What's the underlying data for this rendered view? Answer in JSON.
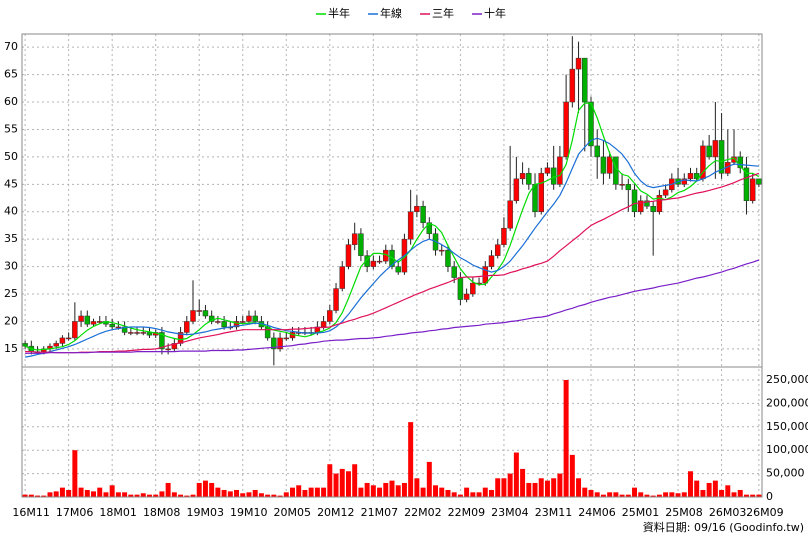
{
  "chart_data": [
    {
      "type": "candlestick",
      "categories": [
        "16M11",
        null,
        null,
        null,
        null,
        null,
        null,
        "17M06",
        null,
        null,
        null,
        null,
        null,
        null,
        "18M01",
        null,
        null,
        null,
        null,
        null,
        null,
        "18M08",
        null,
        null,
        null,
        null,
        null,
        null,
        "19M03",
        null,
        null,
        null,
        null,
        null,
        null,
        "19M10",
        null,
        null,
        null,
        null,
        null,
        null,
        "20M05",
        null,
        null,
        null,
        null,
        null,
        null,
        "20M12",
        null,
        null,
        null,
        null,
        null,
        null,
        "21M07",
        null,
        null,
        null,
        null,
        null,
        null,
        "22M02",
        null,
        null,
        null,
        null,
        null,
        null,
        "22M09",
        null,
        null,
        null,
        null,
        null,
        null,
        "23M04",
        null,
        null,
        null,
        null,
        null,
        null,
        "23M11",
        null,
        null,
        null,
        null,
        null,
        null,
        "24M06",
        null,
        null,
        null,
        null,
        null,
        null,
        "25M01",
        null,
        null,
        null,
        null,
        null,
        null,
        "25M08",
        null,
        null,
        null,
        null,
        null,
        null,
        "26M03",
        null,
        null,
        null,
        null,
        null,
        "26M09"
      ],
      "open": [
        16,
        15.5,
        14.5,
        14.5,
        15,
        15.5,
        16,
        17,
        17,
        20,
        21,
        19.5,
        20,
        20,
        19.5,
        19,
        19,
        18,
        18,
        18,
        18,
        17.5,
        18,
        15,
        15,
        16,
        18,
        20,
        22,
        22,
        21,
        20,
        20,
        19,
        19,
        20,
        20,
        21,
        20,
        19,
        17,
        15,
        17,
        17,
        18,
        18,
        18,
        18,
        19,
        20,
        22,
        26,
        30,
        34,
        36,
        32,
        30,
        31,
        31,
        33,
        30,
        29,
        35,
        40,
        41,
        38,
        36,
        33,
        33,
        30,
        28,
        24,
        25,
        27,
        27,
        30,
        32,
        34,
        37,
        42,
        46,
        47,
        45,
        40,
        47,
        48,
        45,
        50,
        60,
        66,
        68,
        60,
        52,
        50,
        47,
        50,
        45,
        45,
        44,
        40,
        42,
        41,
        40,
        43,
        44,
        46,
        45,
        46,
        47,
        46,
        52,
        50,
        53,
        47,
        49,
        50,
        48,
        42,
        46
      ],
      "high": [
        16.5,
        16.5,
        15.5,
        15.5,
        16,
        16.5,
        17.5,
        18,
        23.5,
        22,
        22,
        20.5,
        21,
        21,
        20.5,
        20,
        20,
        19,
        19,
        19,
        19,
        18.5,
        19,
        16,
        17,
        19,
        21,
        27.5,
        24,
        23,
        22,
        21,
        21,
        20,
        21,
        21,
        22,
        22,
        21,
        20,
        18,
        18,
        18,
        19,
        19,
        19,
        19,
        20,
        21,
        23,
        27,
        31,
        35,
        38,
        37,
        33,
        32,
        32,
        34,
        34,
        31,
        36,
        44,
        43,
        42,
        39,
        37,
        34,
        34,
        31,
        29,
        26,
        28,
        28,
        31,
        33,
        35,
        39,
        52,
        50,
        49,
        48,
        47,
        48,
        49,
        52,
        52,
        65,
        72,
        71,
        68,
        61,
        55,
        53,
        51,
        50,
        47,
        46,
        45,
        43,
        43,
        42,
        44,
        45,
        47,
        48,
        47,
        48,
        48,
        53,
        54,
        60,
        58,
        55,
        55,
        51,
        50,
        47,
        46
      ],
      "low": [
        15,
        14,
        14,
        14,
        14.5,
        15,
        15.5,
        16.5,
        16.5,
        19,
        19,
        19,
        19.5,
        19,
        18.5,
        18.5,
        17.5,
        17.5,
        17.5,
        17.5,
        17,
        17,
        14,
        14,
        14.5,
        15.5,
        17.5,
        19.5,
        21,
        20.5,
        19.5,
        19.5,
        18.5,
        18.5,
        18.5,
        19.5,
        19.5,
        19.5,
        18.5,
        16.5,
        12,
        14.5,
        16.5,
        16.5,
        17.5,
        17.5,
        17.5,
        17.5,
        18.5,
        19.5,
        21.5,
        25.5,
        29.5,
        33,
        31,
        29,
        29.5,
        30.5,
        30.5,
        29.5,
        28.5,
        28.5,
        34,
        39,
        37,
        35,
        32,
        32,
        29,
        27,
        23,
        23.5,
        24.5,
        26.5,
        26.5,
        29.5,
        31.5,
        33.5,
        36.5,
        41.5,
        45,
        44,
        39,
        39.5,
        46.5,
        44,
        44.5,
        49.5,
        59,
        58,
        51,
        50,
        46,
        45,
        46,
        44,
        44,
        40,
        39,
        39.5,
        40.5,
        32,
        39.5,
        42.5,
        43.5,
        44.5,
        44.5,
        45.5,
        45.5,
        45.5,
        49.5,
        46,
        46,
        46.5,
        48.5,
        47,
        39.5,
        41.5,
        44.5
      ],
      "close": [
        15.5,
        14.5,
        14.5,
        15,
        15.5,
        16,
        17,
        17,
        20,
        21,
        19.5,
        20,
        20,
        19.5,
        19,
        19,
        18,
        18,
        18,
        18,
        17.5,
        18,
        15,
        15,
        16,
        18,
        20,
        22,
        22,
        21,
        20,
        20,
        19,
        19,
        20,
        20,
        21,
        20,
        19,
        17,
        15,
        17,
        17,
        18,
        18,
        18,
        18,
        19,
        20,
        22,
        26,
        30,
        34,
        36,
        32,
        30,
        31,
        31,
        33,
        30,
        29,
        35,
        40,
        41,
        38,
        36,
        33,
        33,
        30,
        28,
        24,
        25,
        27,
        27,
        30,
        32,
        34,
        37,
        42,
        46,
        47,
        45,
        40,
        47,
        48,
        45,
        50,
        60,
        66,
        68,
        60,
        52,
        50,
        47,
        50,
        45,
        45,
        44,
        40,
        42,
        41,
        40,
        43,
        44,
        46,
        45,
        46,
        47,
        46,
        52,
        50,
        53,
        47,
        49,
        50,
        48,
        42,
        46,
        45
      ],
      "up_color": "#ff0000",
      "down_color": "#00b000",
      "series": [
        {
          "name": "半年",
          "color": "#00dd00",
          "values": [
            15.5,
            15,
            14.8,
            14.9,
            15,
            15.2,
            15.4,
            15.8,
            16.5,
            17.5,
            18.4,
            19.1,
            19.6,
            20,
            19.8,
            19.5,
            19.2,
            18.8,
            18.5,
            18.3,
            18.1,
            17.9,
            17.6,
            17.2,
            16.9,
            16.7,
            16.9,
            17.6,
            18.5,
            19.5,
            20.2,
            20.6,
            20.3,
            20,
            19.7,
            19.6,
            19.7,
            19.8,
            19.5,
            19,
            18.4,
            18.2,
            18,
            17.6,
            17.4,
            17.2,
            17.5,
            18,
            18.3,
            18.8,
            19.8,
            21.6,
            24.2,
            27.1,
            30,
            31.3,
            32.4,
            32.4,
            32.2,
            31.6,
            30.8,
            31.7,
            33,
            35,
            36.7,
            37.9,
            37.4,
            36.2,
            33.8,
            31.7,
            29.6,
            28.2,
            27.2,
            26.7,
            26.8,
            28.1,
            29.4,
            31.1,
            33.9,
            37.2,
            40.4,
            43.3,
            45,
            45.2,
            45.7,
            46.3,
            46.6,
            48.6,
            53,
            58.5,
            59.8,
            59.8,
            57.1,
            53.8,
            50.7,
            48,
            46.8,
            46.5,
            45.2,
            43.8,
            43.2,
            42.3,
            42.5,
            42.2,
            42.7,
            43.5,
            43.9,
            44.6,
            45.6,
            47.2,
            48.4,
            49.3,
            49.2,
            49.5,
            49.8,
            48.3,
            47,
            47,
            46.4
          ]
        },
        {
          "name": "年線",
          "color": "#1a6fd6",
          "values": [
            13.5,
            13.7,
            14,
            14.2,
            14.5,
            14.8,
            15.1,
            15.4,
            15.8,
            16.3,
            16.8,
            17.3,
            17.8,
            18.2,
            18.5,
            18.7,
            18.9,
            19,
            19,
            19,
            18.9,
            18.7,
            18.4,
            18.1,
            17.9,
            17.7,
            17.6,
            17.7,
            17.9,
            18.1,
            18.4,
            18.6,
            18.8,
            19,
            19.2,
            19.3,
            19.5,
            19.7,
            19.6,
            19.3,
            18.9,
            18.6,
            18.3,
            18.2,
            18,
            17.9,
            17.9,
            17.9,
            18,
            18.3,
            19,
            20,
            21.3,
            22.8,
            24.3,
            25.6,
            26.9,
            28.2,
            29.3,
            30.3,
            31.2,
            32,
            33,
            33.9,
            34.6,
            35,
            34.6,
            34,
            33.3,
            32.4,
            31.6,
            31,
            30.3,
            29.8,
            29.4,
            29,
            29.3,
            30,
            31,
            32.4,
            33.8,
            35.4,
            37,
            38.5,
            40,
            41.4,
            43,
            45.3,
            47.9,
            50.5,
            51.8,
            53,
            53.4,
            53,
            52.4,
            51.5,
            50.5,
            49,
            47,
            45.6,
            44.7,
            44.4,
            44.6,
            44.8,
            45,
            45.5,
            45.8,
            45.7,
            45.6,
            46,
            46.5,
            47.2,
            47.7,
            48.2,
            48.7,
            48.6,
            48.5,
            48.4,
            48.3
          ]
        },
        {
          "name": "三年",
          "color": "#e0105a",
          "values": [
            14.5,
            14.5,
            14.4,
            14.4,
            14.4,
            14.3,
            14.3,
            14.3,
            14.3,
            14.4,
            14.4,
            14.4,
            14.5,
            14.5,
            14.5,
            14.6,
            14.6,
            14.7,
            14.8,
            14.9,
            14.9,
            15,
            15.3,
            15.6,
            15.9,
            16.1,
            16.4,
            16.7,
            17,
            17.2,
            17.4,
            17.6,
            17.9,
            18.1,
            18.3,
            18.5,
            18.5,
            18.5,
            18.5,
            18.5,
            18.5,
            18.5,
            18.5,
            18.6,
            18.6,
            18.7,
            18.8,
            18.9,
            18.9,
            19,
            19.4,
            19.7,
            20.1,
            20.4,
            20.8,
            21.1,
            21.5,
            22,
            22.5,
            23,
            23.5,
            24,
            24.5,
            25,
            25.4,
            25.9,
            26.3,
            26.7,
            27.1,
            27.6,
            28,
            28.1,
            28.1,
            28.2,
            28.3,
            28.4,
            28.4,
            28.5,
            28.9,
            29.2,
            29.6,
            29.9,
            30.3,
            30.6,
            31,
            31.9,
            32.9,
            33.8,
            34.7,
            35.6,
            36.6,
            37.5,
            38.1,
            38.6,
            39.2,
            39.8,
            40.4,
            40.9,
            41.5,
            41.6,
            41.8,
            41.9,
            42.1,
            42.2,
            42.4,
            42.5,
            42.8,
            43.1,
            43.4,
            43.6,
            43.9,
            44.2,
            44.5,
            44.9,
            45.3,
            45.8,
            46.2,
            46.6,
            47
          ]
        },
        {
          "name": "十年",
          "color": "#7a1fc8",
          "values": [
            14.2,
            14.2,
            14.2,
            14.2,
            14.3,
            14.3,
            14.3,
            14.3,
            14.3,
            14.3,
            14.3,
            14.4,
            14.4,
            14.4,
            14.4,
            14.4,
            14.4,
            14.4,
            14.5,
            14.5,
            14.5,
            14.5,
            14.5,
            14.5,
            14.5,
            14.6,
            14.6,
            14.6,
            14.6,
            14.6,
            14.7,
            14.7,
            14.7,
            14.7,
            14.8,
            14.8,
            14.9,
            15,
            15.1,
            15.2,
            15.3,
            15.4,
            15.5,
            15.6,
            15.8,
            15.9,
            16.1,
            16.2,
            16.4,
            16.5,
            16.6,
            16.6,
            16.7,
            16.8,
            16.9,
            16.9,
            17,
            17.1,
            17.3,
            17.4,
            17.6,
            17.7,
            17.9,
            18,
            18.1,
            18.3,
            18.4,
            18.6,
            18.7,
            18.9,
            19,
            19.1,
            19.2,
            19.3,
            19.5,
            19.6,
            19.7,
            19.8,
            20,
            20.1,
            20.3,
            20.5,
            20.7,
            20.8,
            21,
            21.4,
            21.7,
            22.1,
            22.4,
            22.8,
            23.1,
            23.5,
            23.8,
            24.1,
            24.4,
            24.6,
            24.9,
            25.2,
            25.5,
            25.7,
            25.9,
            26.1,
            26.4,
            26.6,
            26.8,
            27,
            27.3,
            27.6,
            27.9,
            28.1,
            28.4,
            28.7,
            29,
            29.4,
            29.7,
            30.1,
            30.5,
            30.8,
            31.2
          ]
        }
      ],
      "ylim": [
        11.7,
        72.4
      ],
      "yticks": [
        15,
        20,
        25,
        30,
        35,
        40,
        45,
        50,
        55,
        60,
        65,
        70
      ],
      "grid": true,
      "legend": "top"
    },
    {
      "type": "bar",
      "color": "#ff0000",
      "values": [
        5000,
        5000,
        3000,
        3000,
        10000,
        12000,
        20000,
        15000,
        100000,
        20000,
        15000,
        12000,
        20000,
        10000,
        25000,
        10000,
        10000,
        5000,
        5000,
        8000,
        5000,
        5000,
        12000,
        30000,
        10000,
        5000,
        3000,
        5000,
        30000,
        35000,
        30000,
        20000,
        15000,
        12000,
        15000,
        8000,
        10000,
        15000,
        8000,
        5000,
        5000,
        3000,
        10000,
        20000,
        25000,
        15000,
        20000,
        20000,
        20000,
        70000,
        50000,
        60000,
        55000,
        70000,
        20000,
        30000,
        25000,
        20000,
        30000,
        35000,
        25000,
        30000,
        160000,
        40000,
        20000,
        75000,
        25000,
        20000,
        15000,
        10000,
        5000,
        20000,
        10000,
        10000,
        20000,
        15000,
        40000,
        40000,
        50000,
        95000,
        60000,
        30000,
        30000,
        40000,
        35000,
        40000,
        50000,
        250000,
        90000,
        40000,
        20000,
        15000,
        10000,
        5000,
        10000,
        10000,
        5000,
        5000,
        20000,
        10000,
        5000,
        3000,
        5000,
        10000,
        10000,
        8000,
        10000,
        55000,
        35000,
        15000,
        30000,
        35000,
        15000,
        25000,
        10000,
        15000,
        5000,
        5000,
        5000
      ],
      "ylim": [
        0,
        277800
      ],
      "yticks": [
        0,
        {
          "value": 50000,
          "label": "50,000"
        },
        {
          "value": 100000,
          "label": "100,000"
        },
        {
          "value": 150000,
          "label": "150,000"
        },
        {
          "value": 200000,
          "label": "200,000"
        },
        {
          "value": 250000,
          "label": "250,000"
        }
      ],
      "grid": true
    }
  ],
  "footer": "資料日期: 09/16  (Goodinfo.tw)"
}
